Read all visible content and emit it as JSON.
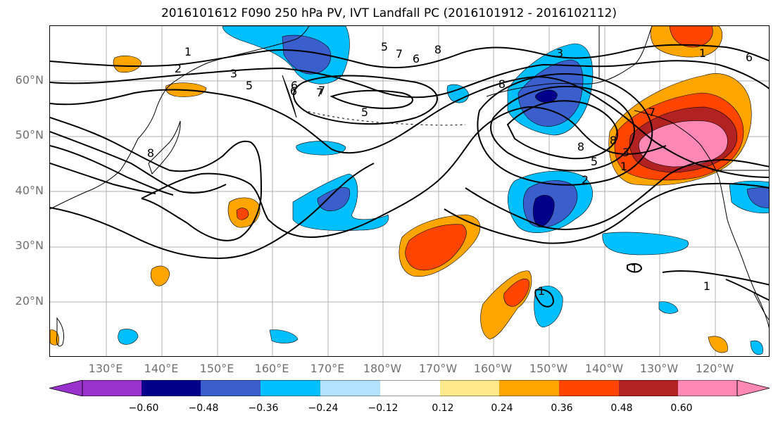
{
  "title": "2016101612 F090 250 hPa PV, IVT Landfall PC (2016101912 - 2016102112)",
  "lat_labels": [
    "60°N",
    "50°N",
    "40°N",
    "30°N",
    "20°N"
  ],
  "lon_labels": [
    "130°E",
    "140°E",
    "150°E",
    "160°E",
    "170°E",
    "180°W",
    "170°W",
    "160°W",
    "150°W",
    "140°W",
    "130°W",
    "120°W"
  ],
  "contour_labels": [
    "1",
    "2",
    "3",
    "5",
    "6",
    "7",
    "8",
    "5",
    "6",
    "7",
    "8",
    "3",
    "8",
    "5",
    "6",
    "7",
    "8",
    "1",
    "2",
    "3",
    "5",
    "7",
    "6",
    "8",
    "1",
    "1",
    "1",
    "1"
  ],
  "colorbar": {
    "ticks": [
      "−0.60",
      "−0.48",
      "−0.36",
      "−0.24",
      "−0.12",
      "0.12",
      "0.24",
      "0.36",
      "0.48",
      "0.60"
    ],
    "colors": [
      "#9932cc",
      "#00008b",
      "#3a5fcd",
      "#00bfff",
      "#b2e2ff",
      "#ffffff",
      "#ffe98a",
      "#ffa500",
      "#ff4500",
      "#b22222",
      "#ff87b4"
    ]
  },
  "shading_colors": {
    "neg_strong": "#00008b",
    "neg_mod": "#3a5fcd",
    "neg_weak": "#00bfff",
    "neg_faint": "#b2e2ff",
    "pos_faint": "#ffe98a",
    "pos_weak": "#ffa500",
    "pos_mod": "#ff4500",
    "pos_strong": "#b22222",
    "pos_max": "#ff87b4"
  }
}
